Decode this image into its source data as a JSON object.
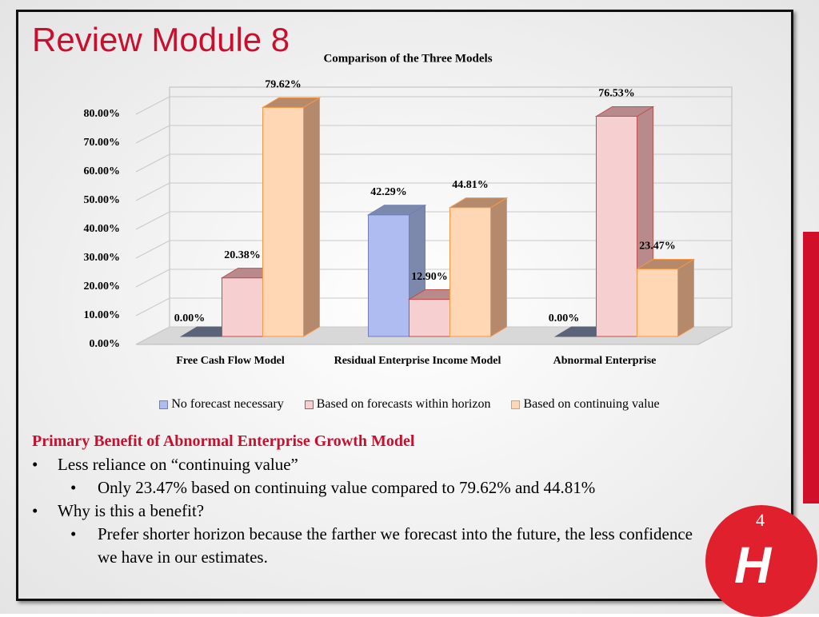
{
  "slide": {
    "title": "Review Module 8",
    "page_number": "4"
  },
  "body": {
    "heading": "Primary Benefit of Abnormal Enterprise Growth Model",
    "items": [
      {
        "text": "Less reliance on “continuing value”",
        "sub": [
          "Only 23.47% based on continuing value compared to 79.62% and 44.81%"
        ]
      },
      {
        "text": "Why is this a benefit?",
        "sub": [
          "Prefer shorter horizon because the farther we forecast into the future, the less confidence we have in our estimates."
        ]
      }
    ]
  },
  "chart_data": {
    "type": "bar3d",
    "title": "Comparison of the Three Models",
    "categories": [
      "Free Cash Flow Model",
      "Residual Enterprise Income Model",
      "Abnormal Enterprise"
    ],
    "series": [
      {
        "name": "No forecast necessary",
        "color": "#aebcf2",
        "side": "#7d88ad",
        "stroke": "#6f7fb5",
        "values": [
          0,
          42.29,
          0
        ],
        "value_labels": [
          "0.00%",
          "42.29%",
          "0.00%"
        ]
      },
      {
        "name": "Based on forecasts within horizon",
        "color": "#f6cfd1",
        "side": "#b98a8c",
        "stroke": "#c0504d",
        "values": [
          20.38,
          12.9,
          76.53
        ],
        "value_labels": [
          "20.38%",
          "12.90%",
          "76.53%"
        ]
      },
      {
        "name": "Based on continuing value",
        "color": "#ffd7b5",
        "side": "#b58a6c",
        "stroke": "#f79646",
        "values": [
          79.62,
          44.81,
          23.47
        ],
        "value_labels": [
          "79.62%",
          "44.81%",
          "23.47%"
        ]
      }
    ],
    "ylim": [
      0,
      80
    ],
    "yticks": [
      {
        "value": 0,
        "label": "0.00%"
      },
      {
        "value": 10,
        "label": "10.00%"
      },
      {
        "value": 20,
        "label": "20.00%"
      },
      {
        "value": 30,
        "label": "30.00%"
      },
      {
        "value": 40,
        "label": "40.00%"
      },
      {
        "value": 50,
        "label": "50.00%"
      },
      {
        "value": 60,
        "label": "60.00%"
      },
      {
        "value": 70,
        "label": "70.00%"
      },
      {
        "value": 80,
        "label": "80.00%"
      }
    ],
    "grid": true,
    "legend": "bottom"
  }
}
